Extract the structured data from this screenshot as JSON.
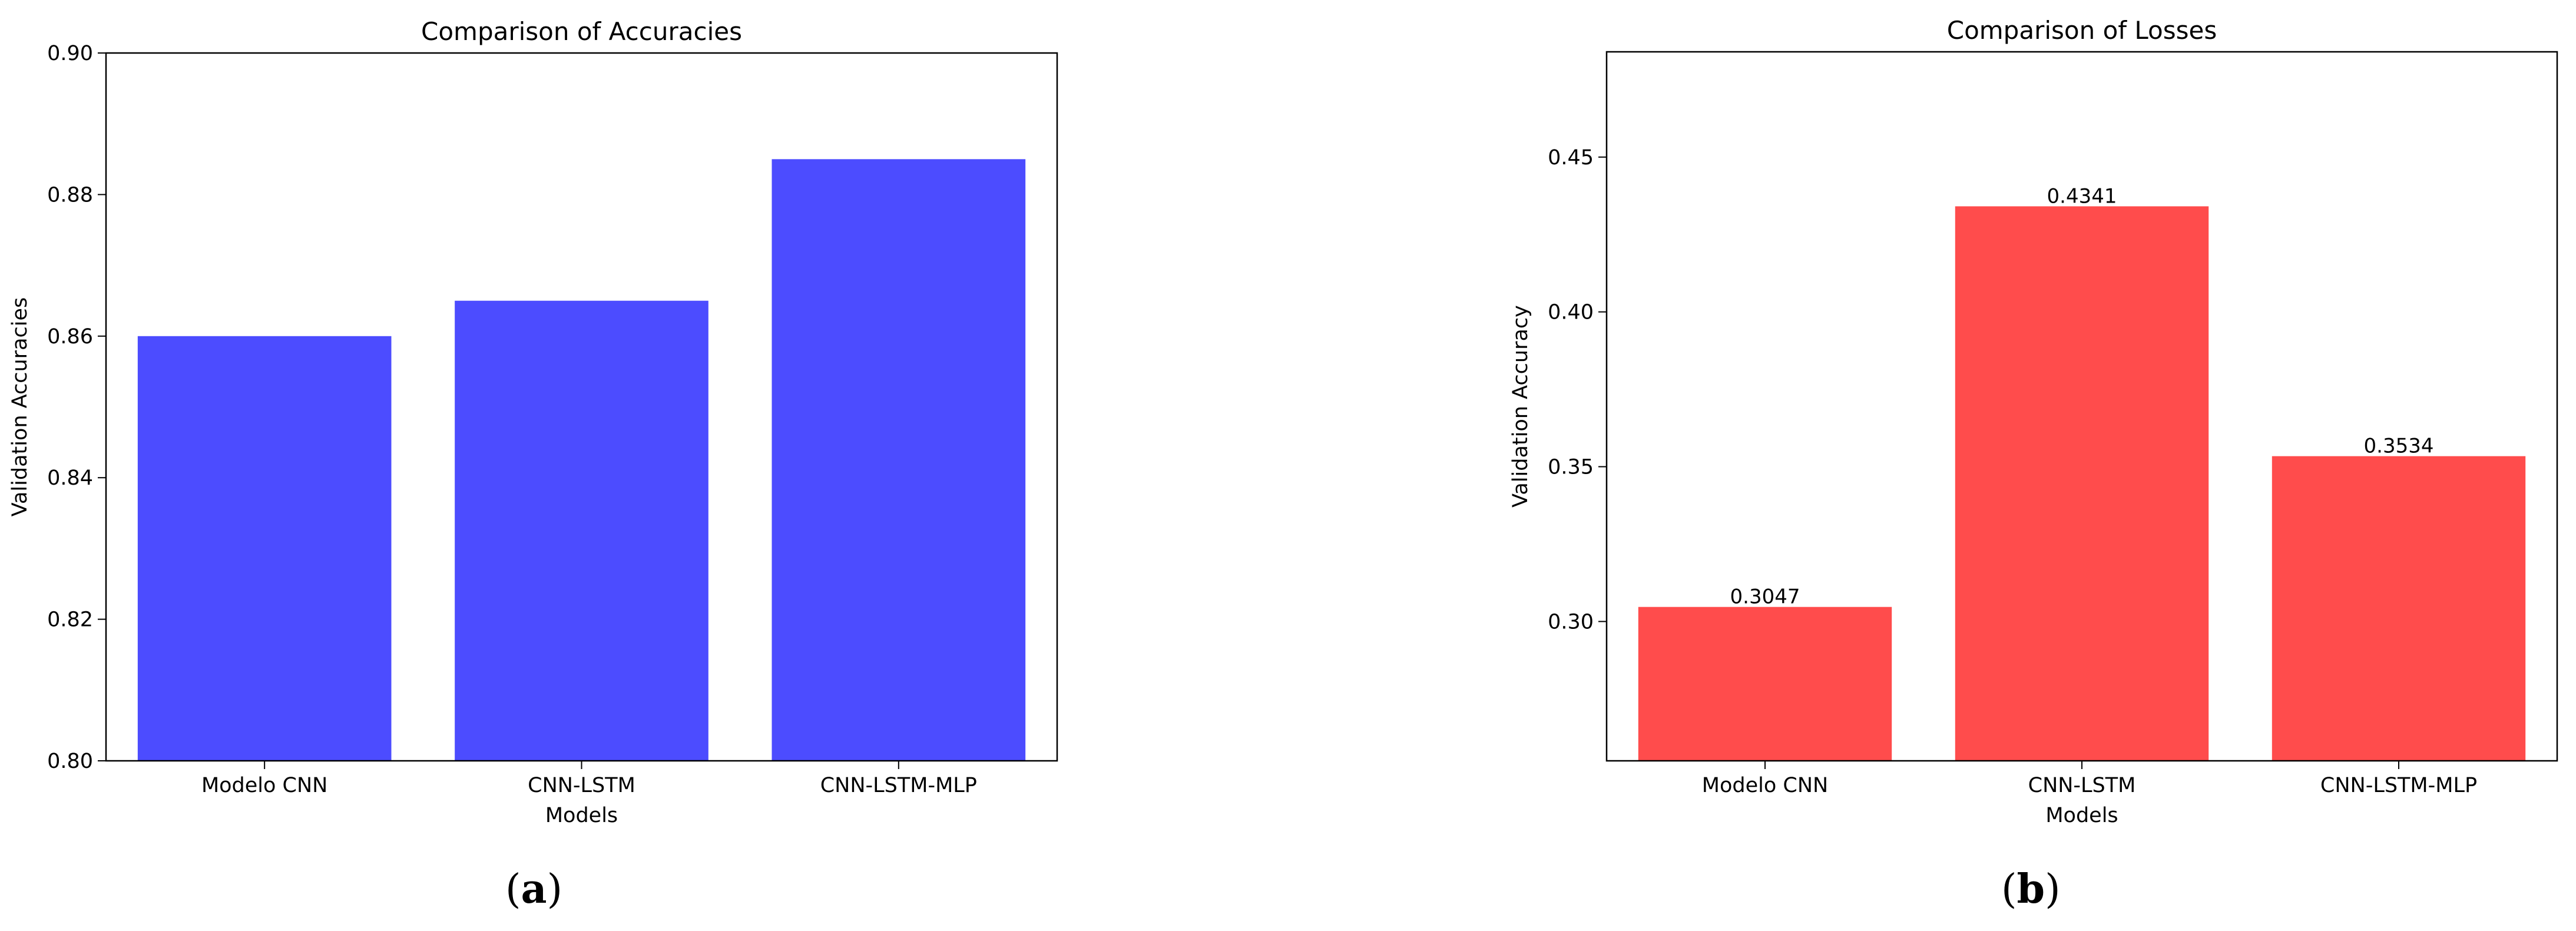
{
  "chart_data": [
    {
      "type": "bar",
      "title": "Comparison of Accuracies",
      "xlabel": "Models",
      "ylabel": "Validation Accuracies",
      "categories": [
        "Modelo CNN",
        "CNN-LSTM",
        "CNN-LSTM-MLP"
      ],
      "values": [
        0.86,
        0.865,
        0.885
      ],
      "ylim": [
        0.8,
        0.9
      ],
      "yticks": [
        0.8,
        0.82,
        0.84,
        0.86,
        0.88,
        0.9
      ],
      "ytick_labels": [
        "0.80",
        "0.82",
        "0.84",
        "0.86",
        "0.88",
        "0.90"
      ],
      "data_labels": null,
      "color": "#4c4cff",
      "grid": false
    },
    {
      "type": "bar",
      "title": "Comparison of Losses",
      "xlabel": "Models",
      "ylabel": "Validation Accuracy",
      "categories": [
        "Modelo CNN",
        "CNN-LSTM",
        "CNN-LSTM-MLP"
      ],
      "values": [
        0.3047,
        0.4341,
        0.3534
      ],
      "ylim": [
        0.255,
        0.484
      ],
      "yticks": [
        0.3,
        0.35,
        0.4,
        0.45
      ],
      "ytick_labels": [
        "0.30",
        "0.35",
        "0.40",
        "0.45"
      ],
      "data_labels": [
        "0.3047",
        "0.4341",
        "0.3534"
      ],
      "color": "#ff4c4c",
      "grid": false
    }
  ],
  "panel_labels": {
    "a": "a",
    "b": "b"
  }
}
